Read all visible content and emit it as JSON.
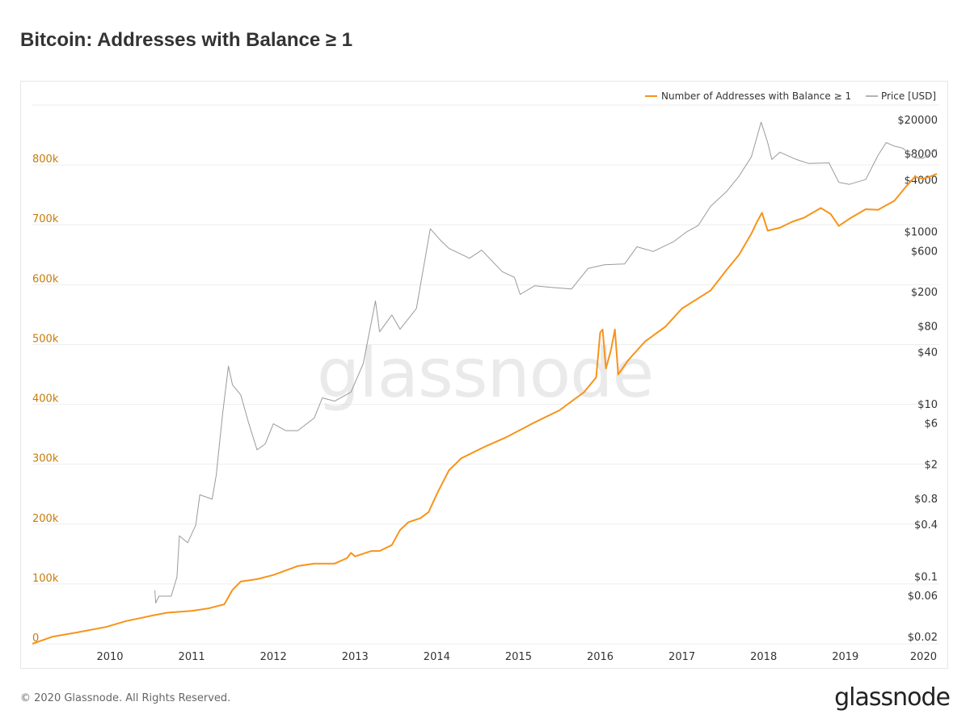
{
  "title": "Bitcoin: Addresses with Balance ≥ 1",
  "footer": {
    "copyright": "© 2020 Glassnode. All Rights Reserved.",
    "logo": "glassnode"
  },
  "watermark": "glassnode",
  "chart_data": {
    "type": "line",
    "legend_position": "top-right",
    "grid": true,
    "x_ticks": [
      "2010",
      "2011",
      "2012",
      "2013",
      "2014",
      "2015",
      "2016",
      "2017",
      "2018",
      "2019",
      "2020"
    ],
    "x_range": [
      2009.05,
      2020.15
    ],
    "y_left": {
      "range": [
        0,
        900000
      ],
      "tick_values": [
        0,
        100000,
        200000,
        300000,
        400000,
        500000,
        600000,
        700000,
        800000
      ],
      "tick_labels": [
        "0",
        "100k",
        "200k",
        "300k",
        "400k",
        "500k",
        "600k",
        "700k",
        "800k"
      ],
      "color": "#c77b0a"
    },
    "y_right": {
      "scale": "log",
      "range": [
        0.0168,
        30000
      ],
      "tick_values": [
        0.02,
        0.06,
        0.1,
        0.4,
        0.8,
        2,
        6,
        10,
        40,
        80,
        200,
        600,
        1000,
        4000,
        8000,
        20000
      ],
      "tick_labels": [
        "$0.02",
        "$0.06",
        "$0.1",
        "$0.4",
        "$0.8",
        "$2",
        "$6",
        "$10",
        "$40",
        "$80",
        "$200",
        "$600",
        "$1000",
        "$4000",
        "$8000",
        "$20000"
      ]
    },
    "series": [
      {
        "name": "Number of Addresses with Balance ≥ 1",
        "axis": "left",
        "color": "#f7931a",
        "points": [
          [
            2009.05,
            0
          ],
          [
            2009.3,
            12000
          ],
          [
            2009.6,
            19000
          ],
          [
            2009.95,
            28000
          ],
          [
            2010.2,
            38000
          ],
          [
            2010.55,
            48000
          ],
          [
            2010.7,
            52000
          ],
          [
            2011.0,
            55000
          ],
          [
            2011.2,
            59000
          ],
          [
            2011.4,
            66000
          ],
          [
            2011.5,
            90000
          ],
          [
            2011.6,
            104000
          ],
          [
            2011.8,
            108000
          ],
          [
            2012.0,
            115000
          ],
          [
            2012.3,
            130000
          ],
          [
            2012.5,
            134000
          ],
          [
            2012.75,
            134000
          ],
          [
            2012.9,
            143000
          ],
          [
            2012.95,
            152000
          ],
          [
            2013.0,
            146000
          ],
          [
            2013.2,
            155000
          ],
          [
            2013.3,
            155000
          ],
          [
            2013.45,
            165000
          ],
          [
            2013.55,
            190000
          ],
          [
            2013.65,
            203000
          ],
          [
            2013.8,
            210000
          ],
          [
            2013.9,
            220000
          ],
          [
            2014.0,
            250000
          ],
          [
            2014.15,
            290000
          ],
          [
            2014.3,
            310000
          ],
          [
            2014.6,
            330000
          ],
          [
            2014.85,
            345000
          ],
          [
            2015.2,
            370000
          ],
          [
            2015.5,
            390000
          ],
          [
            2015.8,
            420000
          ],
          [
            2015.95,
            445000
          ],
          [
            2016.0,
            520000
          ],
          [
            2016.03,
            525000
          ],
          [
            2016.07,
            460000
          ],
          [
            2016.13,
            490000
          ],
          [
            2016.18,
            525000
          ],
          [
            2016.22,
            450000
          ],
          [
            2016.35,
            475000
          ],
          [
            2016.55,
            505000
          ],
          [
            2016.8,
            530000
          ],
          [
            2017.0,
            560000
          ],
          [
            2017.35,
            590000
          ],
          [
            2017.55,
            625000
          ],
          [
            2017.7,
            650000
          ],
          [
            2017.85,
            685000
          ],
          [
            2017.92,
            705000
          ],
          [
            2017.98,
            720000
          ],
          [
            2018.05,
            690000
          ],
          [
            2018.2,
            695000
          ],
          [
            2018.35,
            705000
          ],
          [
            2018.5,
            712000
          ],
          [
            2018.7,
            728000
          ],
          [
            2018.82,
            718000
          ],
          [
            2018.92,
            698000
          ],
          [
            2019.05,
            710000
          ],
          [
            2019.25,
            726000
          ],
          [
            2019.4,
            725000
          ],
          [
            2019.6,
            740000
          ],
          [
            2019.75,
            765000
          ],
          [
            2019.85,
            780000
          ],
          [
            2019.95,
            777000
          ],
          [
            2020.05,
            781000
          ],
          [
            2020.12,
            785000
          ]
        ]
      },
      {
        "name": "Price [USD]",
        "axis": "right",
        "color": "#9a9a9a",
        "points": [
          [
            2010.55,
            0.07
          ],
          [
            2010.56,
            0.05
          ],
          [
            2010.6,
            0.06
          ],
          [
            2010.75,
            0.06
          ],
          [
            2010.82,
            0.1
          ],
          [
            2010.85,
            0.3
          ],
          [
            2010.95,
            0.25
          ],
          [
            2011.05,
            0.4
          ],
          [
            2011.1,
            0.9
          ],
          [
            2011.25,
            0.8
          ],
          [
            2011.3,
            1.5
          ],
          [
            2011.38,
            8
          ],
          [
            2011.45,
            28
          ],
          [
            2011.5,
            17
          ],
          [
            2011.6,
            13
          ],
          [
            2011.7,
            6
          ],
          [
            2011.8,
            3
          ],
          [
            2011.9,
            3.5
          ],
          [
            2012.0,
            6
          ],
          [
            2012.15,
            5
          ],
          [
            2012.3,
            5
          ],
          [
            2012.5,
            7
          ],
          [
            2012.6,
            12
          ],
          [
            2012.75,
            11
          ],
          [
            2012.95,
            14
          ],
          [
            2013.1,
            30
          ],
          [
            2013.25,
            160
          ],
          [
            2013.3,
            70
          ],
          [
            2013.45,
            110
          ],
          [
            2013.55,
            75
          ],
          [
            2013.75,
            130
          ],
          [
            2013.92,
            1100
          ],
          [
            2014.05,
            800
          ],
          [
            2014.15,
            650
          ],
          [
            2014.4,
            500
          ],
          [
            2014.55,
            620
          ],
          [
            2014.8,
            350
          ],
          [
            2014.95,
            300
          ],
          [
            2015.02,
            190
          ],
          [
            2015.2,
            240
          ],
          [
            2015.4,
            230
          ],
          [
            2015.65,
            220
          ],
          [
            2015.85,
            380
          ],
          [
            2016.05,
            420
          ],
          [
            2016.3,
            430
          ],
          [
            2016.45,
            680
          ],
          [
            2016.65,
            600
          ],
          [
            2016.9,
            780
          ],
          [
            2017.05,
            1000
          ],
          [
            2017.2,
            1200
          ],
          [
            2017.35,
            2000
          ],
          [
            2017.55,
            3000
          ],
          [
            2017.7,
            4500
          ],
          [
            2017.85,
            7500
          ],
          [
            2017.97,
            19000
          ],
          [
            2018.05,
            11000
          ],
          [
            2018.1,
            7000
          ],
          [
            2018.2,
            8500
          ],
          [
            2018.4,
            7000
          ],
          [
            2018.55,
            6300
          ],
          [
            2018.8,
            6400
          ],
          [
            2018.92,
            3800
          ],
          [
            2019.05,
            3600
          ],
          [
            2019.25,
            4100
          ],
          [
            2019.4,
            7800
          ],
          [
            2019.5,
            11000
          ],
          [
            2019.6,
            10000
          ],
          [
            2019.7,
            9500
          ],
          [
            2019.85,
            7300
          ],
          [
            2019.95,
            7200
          ],
          [
            2020.05,
            8300
          ],
          [
            2020.12,
            9200
          ]
        ]
      }
    ]
  }
}
